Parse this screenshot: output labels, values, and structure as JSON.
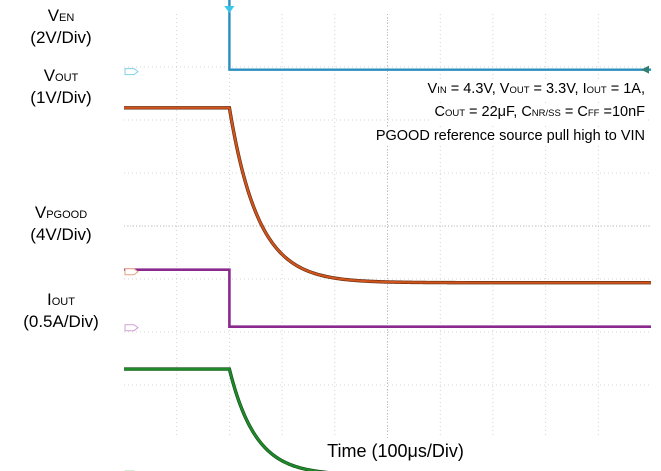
{
  "labels": {
    "ven_main": "V",
    "ven_sub": "EN",
    "ven_div": "(2V/Div)",
    "vout_main": "V",
    "vout_sub": "OUT",
    "vout_div": "(1V/Div)",
    "vpg_main": "V",
    "vpg_sub": "PGOOD",
    "vpg_div": "(4V/Div)",
    "iout_main": "I",
    "iout_sub": "OUT",
    "iout_div": "(0.5A/Div)"
  },
  "annotation": {
    "l1_a": "V",
    "l1_a_sub": "IN",
    "l1_b": " = 4.3V, V",
    "l1_b_sub": "OUT",
    "l1_c": " = 3.3V, I",
    "l1_c_sub": "OUT",
    "l1_d": " = 1A,",
    "l2_a": "C",
    "l2_a_sub": "OUT",
    "l2_b": " = 22μF, C",
    "l2_b_sub": "NR/SS",
    "l2_c": " = C",
    "l2_c_sub": "FF",
    "l2_d": " =10nF",
    "l3": "PGOOD reference source pull high to VIN"
  },
  "xlabel": "Time (100μs/Div)",
  "chart_data": {
    "type": "line",
    "title": "",
    "xlabel": "Time (100μs/Div)",
    "x_range_div": [
      -2,
      8
    ],
    "grid": true,
    "trigger_time_div": 0,
    "series": [
      {
        "name": "VEN",
        "scale": "2V/Div",
        "color": "#2a8fc0",
        "marker_color": "#7fd0ea",
        "high_V": 4.3,
        "low_V": 0,
        "falling_edge_div": 0
      },
      {
        "name": "VOUT",
        "scale": "1V/Div",
        "color": "#d0541c",
        "marker_color": "#e8a080",
        "initial_V": 3.3,
        "final_V": 0,
        "decay_tau_div": 0.55,
        "start_div": 0
      },
      {
        "name": "VPGOOD",
        "scale": "4V/Div",
        "color": "#8a2a8e",
        "marker_color": "#cfa0d4",
        "high_V": 4.3,
        "low_V": 0,
        "falling_edge_div": 0
      },
      {
        "name": "IOUT",
        "scale": "0.5A/Div",
        "color": "#1f8a2a",
        "marker_color": "#90d090",
        "initial_A": 1.0,
        "final_A": 0,
        "decay_tau_div": 0.5,
        "start_div": 0
      }
    ]
  }
}
